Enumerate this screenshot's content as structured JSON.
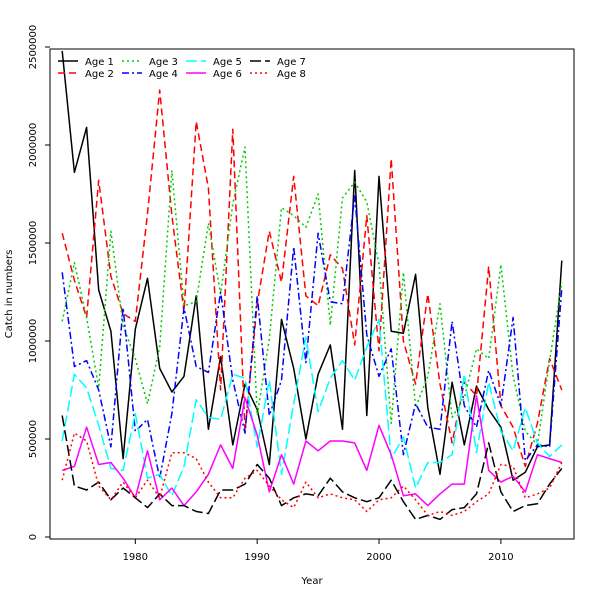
{
  "chart_data": {
    "type": "line",
    "title": "",
    "xlabel": "Year",
    "ylabel": "Catch in numbers",
    "xlim": [
      1973,
      2016
    ],
    "ylim": [
      0,
      2500000
    ],
    "x_ticks": [
      1980,
      1990,
      2000,
      2010
    ],
    "x_tick_labels": [
      "1980",
      "1990",
      "2000",
      "2010"
    ],
    "y_ticks": [
      0,
      500000,
      1000000,
      1500000,
      2000000,
      2500000
    ],
    "y_tick_labels": [
      "0",
      "500000",
      "1000000",
      "1500000",
      "2000000",
      "2500000"
    ],
    "grid": false,
    "legend_position": "top-left",
    "x": [
      1974,
      1975,
      1976,
      1977,
      1978,
      1979,
      1980,
      1981,
      1982,
      1983,
      1984,
      1985,
      1986,
      1987,
      1988,
      1989,
      1990,
      1991,
      1992,
      1993,
      1994,
      1995,
      1996,
      1997,
      1998,
      1999,
      2000,
      2001,
      2002,
      2003,
      2004,
      2005,
      2006,
      2007,
      2008,
      2009,
      2010,
      2011,
      2012,
      2013,
      2014,
      2015
    ],
    "series": [
      {
        "name": "Age 1",
        "color": "#000000",
        "dash": "solid",
        "values": [
          2480000,
          1860000,
          2090000,
          1260000,
          1050000,
          400000,
          1060000,
          1320000,
          860000,
          740000,
          820000,
          1230000,
          550000,
          920000,
          470000,
          780000,
          650000,
          370000,
          1110000,
          860000,
          500000,
          830000,
          980000,
          550000,
          1870000,
          620000,
          1840000,
          1050000,
          1040000,
          1340000,
          660000,
          320000,
          790000,
          470000,
          770000,
          650000,
          560000,
          290000,
          330000,
          460000,
          470000,
          1410000
        ]
      },
      {
        "name": "Age 2",
        "color": "#ff0000",
        "dash": "dashed",
        "values": [
          1550000,
          1310000,
          1120000,
          1820000,
          1330000,
          1140000,
          1100000,
          1650000,
          2280000,
          1640000,
          1150000,
          2120000,
          1780000,
          750000,
          2080000,
          540000,
          1190000,
          1560000,
          1300000,
          1840000,
          1230000,
          1180000,
          1440000,
          1370000,
          980000,
          1640000,
          950000,
          1930000,
          1000000,
          780000,
          1240000,
          780000,
          480000,
          790000,
          720000,
          1380000,
          670000,
          560000,
          360000,
          580000,
          910000,
          750000
        ]
      },
      {
        "name": "Age 3",
        "color": "#00cc00",
        "dash": "dotted",
        "values": [
          1100000,
          1400000,
          1120000,
          760000,
          1560000,
          1080000,
          910000,
          680000,
          970000,
          1870000,
          1180000,
          1200000,
          1600000,
          1240000,
          1700000,
          1990000,
          620000,
          1010000,
          1680000,
          1640000,
          1580000,
          1750000,
          1080000,
          1730000,
          1810000,
          1710000,
          1390000,
          580000,
          1350000,
          660000,
          820000,
          1190000,
          610000,
          710000,
          960000,
          910000,
          1390000,
          820000,
          540000,
          470000,
          900000,
          1300000
        ]
      },
      {
        "name": "Age 4",
        "color": "#0000ff",
        "dash": "dashdot",
        "values": [
          1350000,
          870000,
          900000,
          750000,
          460000,
          1170000,
          540000,
          600000,
          300000,
          630000,
          1170000,
          870000,
          840000,
          1250000,
          800000,
          530000,
          1230000,
          620000,
          800000,
          1480000,
          890000,
          1550000,
          1200000,
          1190000,
          1740000,
          1030000,
          820000,
          960000,
          420000,
          680000,
          560000,
          550000,
          1100000,
          670000,
          560000,
          850000,
          670000,
          1120000,
          390000,
          470000,
          460000,
          1270000
        ]
      },
      {
        "name": "Age 5",
        "color": "#00ffff",
        "dash": "longdash",
        "values": [
          490000,
          830000,
          760000,
          570000,
          350000,
          340000,
          630000,
          300000,
          320000,
          210000,
          360000,
          700000,
          610000,
          600000,
          830000,
          810000,
          460000,
          800000,
          320000,
          680000,
          1020000,
          640000,
          810000,
          900000,
          800000,
          970000,
          1110000,
          400000,
          510000,
          250000,
          380000,
          380000,
          420000,
          830000,
          430000,
          790000,
          540000,
          440000,
          660000,
          480000,
          410000,
          470000
        ]
      },
      {
        "name": "Age 6",
        "color": "#ff00ff",
        "dash": "solid",
        "values": [
          340000,
          360000,
          560000,
          370000,
          380000,
          300000,
          200000,
          440000,
          190000,
          250000,
          160000,
          230000,
          320000,
          470000,
          350000,
          710000,
          520000,
          230000,
          420000,
          270000,
          490000,
          440000,
          490000,
          490000,
          480000,
          340000,
          570000,
          420000,
          210000,
          220000,
          160000,
          220000,
          270000,
          270000,
          720000,
          340000,
          280000,
          310000,
          230000,
          420000,
          400000,
          380000
        ]
      },
      {
        "name": "Age 7",
        "color": "#000000",
        "dash": "longdash",
        "values": [
          620000,
          260000,
          240000,
          280000,
          190000,
          250000,
          200000,
          150000,
          220000,
          160000,
          160000,
          130000,
          120000,
          240000,
          240000,
          270000,
          370000,
          300000,
          160000,
          200000,
          220000,
          210000,
          300000,
          230000,
          200000,
          180000,
          200000,
          290000,
          180000,
          90000,
          110000,
          90000,
          140000,
          150000,
          220000,
          480000,
          230000,
          130000,
          160000,
          170000,
          270000,
          350000
        ]
      },
      {
        "name": "Age 8",
        "color": "#ff0000",
        "dash": "dotted",
        "values": [
          290000,
          530000,
          490000,
          260000,
          190000,
          280000,
          200000,
          290000,
          200000,
          430000,
          430000,
          400000,
          280000,
          200000,
          200000,
          300000,
          340000,
          260000,
          190000,
          150000,
          280000,
          200000,
          220000,
          200000,
          190000,
          130000,
          190000,
          200000,
          260000,
          190000,
          110000,
          130000,
          110000,
          130000,
          180000,
          220000,
          370000,
          360000,
          200000,
          220000,
          250000,
          380000
        ]
      }
    ]
  }
}
